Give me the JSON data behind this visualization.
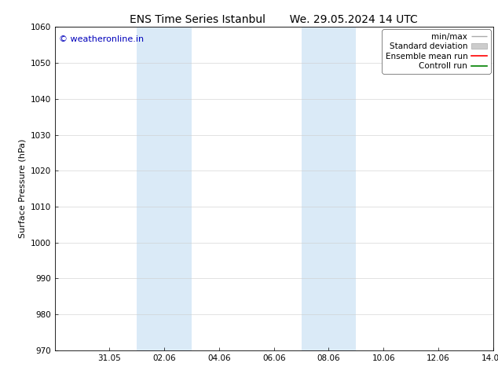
{
  "title_left": "ENS Time Series Istanbul",
  "title_right": "We. 29.05.2024 14 UTC",
  "ylabel": "Surface Pressure (hPa)",
  "ylim": [
    970,
    1060
  ],
  "yticks": [
    970,
    980,
    990,
    1000,
    1010,
    1020,
    1030,
    1040,
    1050,
    1060
  ],
  "xlim": [
    0,
    16
  ],
  "xtick_positions": [
    2,
    4,
    6,
    8,
    10,
    12,
    14,
    16
  ],
  "xtick_labels": [
    "31.05",
    "02.06",
    "04.06",
    "06.06",
    "08.06",
    "10.06",
    "12.06",
    "14.06"
  ],
  "shaded_bands": [
    {
      "x_start": 3.0,
      "x_end": 5.0,
      "color": "#daeaf7"
    },
    {
      "x_start": 9.0,
      "x_end": 11.0,
      "color": "#daeaf7"
    }
  ],
  "watermark_text": "© weatheronline.in",
  "watermark_color": "#0000bb",
  "watermark_fontsize": 8,
  "legend_labels": [
    "min/max",
    "Standard deviation",
    "Ensemble mean run",
    "Controll run"
  ],
  "legend_colors": [
    "#aaaaaa",
    "#cccccc",
    "#ff0000",
    "#008000"
  ],
  "background_color": "#ffffff",
  "grid_color": "#cccccc",
  "title_fontsize": 10,
  "axis_fontsize": 7.5,
  "legend_fontsize": 7.5,
  "ylabel_fontsize": 8
}
